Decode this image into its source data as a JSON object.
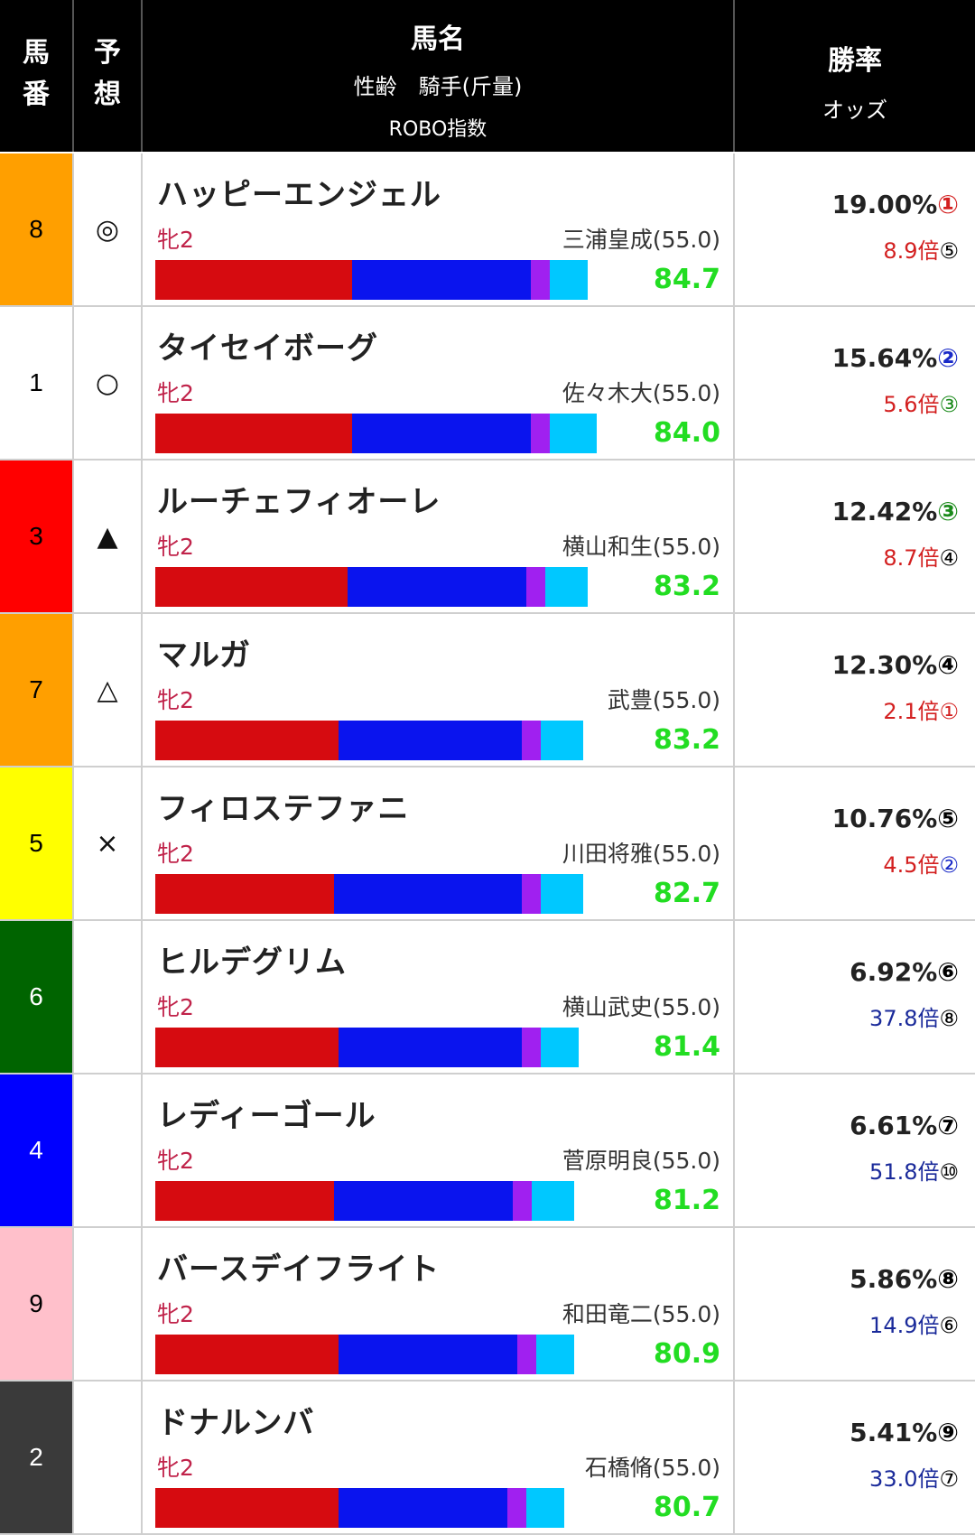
{
  "header": {
    "num": "馬\n番",
    "pred": "予\n想",
    "name": "馬名",
    "sub1": "性齢　騎手(斤量)",
    "sub2": "ROBO指数",
    "win": "勝率",
    "odds": "オッズ"
  },
  "colors": {
    "seg1": "#d60b10",
    "seg2": "#0a14ee",
    "seg3": "#a020f0",
    "seg4": "#00c8ff",
    "score": "#22dd22",
    "sex": "#c0234a"
  },
  "rows": [
    {
      "num": "8",
      "num_bg": "#ff9f00",
      "num_fg": "#000000",
      "pred": "◎",
      "name": "ハッピーエンジェル",
      "sex": "牝2",
      "jockey": "三浦皇成(55.0)",
      "score": "84.7",
      "bar": [
        0.42,
        0.38,
        0.04,
        0.08
      ],
      "winrate": "19.00%",
      "win_rank": "①",
      "win_rank_color": "#d32020",
      "odds": "8.9倍",
      "odds_rank": "⑤",
      "odds_color": "#d32020",
      "odds_rank_color": "#000000"
    },
    {
      "num": "1",
      "num_bg": "#ffffff",
      "num_fg": "#000000",
      "pred": "○",
      "name": "タイセイボーグ",
      "sex": "牝2",
      "jockey": "佐々木大(55.0)",
      "score": "84.0",
      "bar": [
        0.42,
        0.38,
        0.04,
        0.1
      ],
      "winrate": "15.64%",
      "win_rank": "②",
      "win_rank_color": "#1a2ac8",
      "odds": "5.6倍",
      "odds_rank": "③",
      "odds_color": "#d32020",
      "odds_rank_color": "#1a8a1a"
    },
    {
      "num": "3",
      "num_bg": "#ff0000",
      "num_fg": "#000000",
      "pred": "▲",
      "name": "ルーチェフィオーレ",
      "sex": "牝2",
      "jockey": "横山和生(55.0)",
      "score": "83.2",
      "bar": [
        0.41,
        0.38,
        0.04,
        0.09
      ],
      "winrate": "12.42%",
      "win_rank": "③",
      "win_rank_color": "#1a8a1a",
      "odds": "8.7倍",
      "odds_rank": "④",
      "odds_color": "#d32020",
      "odds_rank_color": "#000000"
    },
    {
      "num": "7",
      "num_bg": "#ff9f00",
      "num_fg": "#000000",
      "pred": "△",
      "name": "マルガ",
      "sex": "牝2",
      "jockey": "武豊(55.0)",
      "score": "83.2",
      "bar": [
        0.39,
        0.39,
        0.04,
        0.09
      ],
      "winrate": "12.30%",
      "win_rank": "④",
      "win_rank_color": "#000000",
      "odds": "2.1倍",
      "odds_rank": "①",
      "odds_color": "#d32020",
      "odds_rank_color": "#d32020"
    },
    {
      "num": "5",
      "num_bg": "#ffff00",
      "num_fg": "#000000",
      "pred": "×",
      "name": "フィロステファニ",
      "sex": "牝2",
      "jockey": "川田将雅(55.0)",
      "score": "82.7",
      "bar": [
        0.38,
        0.4,
        0.04,
        0.09
      ],
      "winrate": "10.76%",
      "win_rank": "⑤",
      "win_rank_color": "#000000",
      "odds": "4.5倍",
      "odds_rank": "②",
      "odds_color": "#d32020",
      "odds_rank_color": "#1a2ac8"
    },
    {
      "num": "6",
      "num_bg": "#006400",
      "num_fg": "#ffffff",
      "pred": "",
      "name": "ヒルデグリム",
      "sex": "牝2",
      "jockey": "横山武史(55.0)",
      "score": "81.4",
      "bar": [
        0.39,
        0.39,
        0.04,
        0.08
      ],
      "winrate": "6.92%",
      "win_rank": "⑥",
      "win_rank_color": "#000000",
      "odds": "37.8倍",
      "odds_rank": "⑧",
      "odds_color": "#1a2a9a",
      "odds_rank_color": "#000000"
    },
    {
      "num": "4",
      "num_bg": "#0000ff",
      "num_fg": "#ffffff",
      "pred": "",
      "name": "レディーゴール",
      "sex": "牝2",
      "jockey": "菅原明良(55.0)",
      "score": "81.2",
      "bar": [
        0.38,
        0.38,
        0.04,
        0.09
      ],
      "winrate": "6.61%",
      "win_rank": "⑦",
      "win_rank_color": "#000000",
      "odds": "51.8倍",
      "odds_rank": "⑩",
      "odds_color": "#1a2a9a",
      "odds_rank_color": "#000000"
    },
    {
      "num": "9",
      "num_bg": "#ffc0cb",
      "num_fg": "#000000",
      "pred": "",
      "name": "バースデイフライト",
      "sex": "牝2",
      "jockey": "和田竜二(55.0)",
      "score": "80.9",
      "bar": [
        0.39,
        0.38,
        0.04,
        0.08
      ],
      "winrate": "5.86%",
      "win_rank": "⑧",
      "win_rank_color": "#000000",
      "odds": "14.9倍",
      "odds_rank": "⑥",
      "odds_color": "#1a2a9a",
      "odds_rank_color": "#000000"
    },
    {
      "num": "2",
      "num_bg": "#3a3a3a",
      "num_fg": "#ffffff",
      "pred": "",
      "name": "ドナルンバ",
      "sex": "牝2",
      "jockey": "石橋脩(55.0)",
      "score": "80.7",
      "bar": [
        0.39,
        0.36,
        0.04,
        0.08
      ],
      "winrate": "5.41%",
      "win_rank": "⑨",
      "win_rank_color": "#000000",
      "odds": "33.0倍",
      "odds_rank": "⑦",
      "odds_color": "#1a2a9a",
      "odds_rank_color": "#000000"
    }
  ]
}
